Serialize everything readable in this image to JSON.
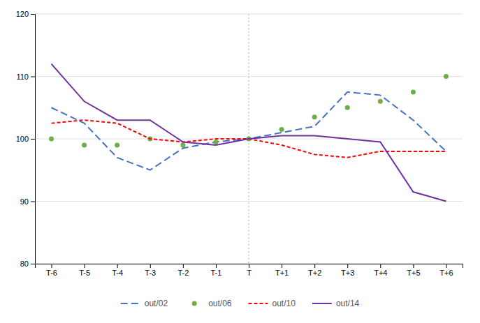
{
  "chart_data": {
    "type": "line",
    "categories": [
      "T-6",
      "T-5",
      "T-4",
      "T-3",
      "T-2",
      "T-1",
      "T",
      "T+1",
      "T+2",
      "T+3",
      "T+4",
      "T+5",
      "T+6"
    ],
    "series": [
      {
        "name": "out/02",
        "color": "#4472c4",
        "line_style": "longdash",
        "marker": "none",
        "values": [
          105,
          102.5,
          97,
          95,
          98.5,
          99.5,
          100,
          101,
          102,
          107.5,
          107,
          103,
          98
        ]
      },
      {
        "name": "out/06",
        "color": "#70ad47",
        "line_style": "none",
        "marker": "circle",
        "values": [
          100,
          99,
          99,
          100,
          99,
          99.5,
          100,
          101.5,
          103.5,
          105,
          106,
          107.5,
          110
        ]
      },
      {
        "name": "out/10",
        "color": "#ff0000",
        "line_style": "dashed",
        "marker": "none",
        "values": [
          102.5,
          103,
          102.5,
          100,
          99.5,
          100,
          100,
          99,
          97.5,
          97,
          98,
          98,
          98
        ]
      },
      {
        "name": "out/14",
        "color": "#7030a0",
        "line_style": "solid",
        "marker": "none",
        "values": [
          112,
          106,
          103,
          103,
          99.5,
          99,
          100,
          100.5,
          100.5,
          100,
          99.5,
          91.5,
          90
        ]
      }
    ],
    "ylim": [
      80,
      120
    ],
    "yticks": [
      80,
      90,
      100,
      110,
      120
    ],
    "grid": true,
    "legend": "bottom",
    "vline": "T"
  }
}
